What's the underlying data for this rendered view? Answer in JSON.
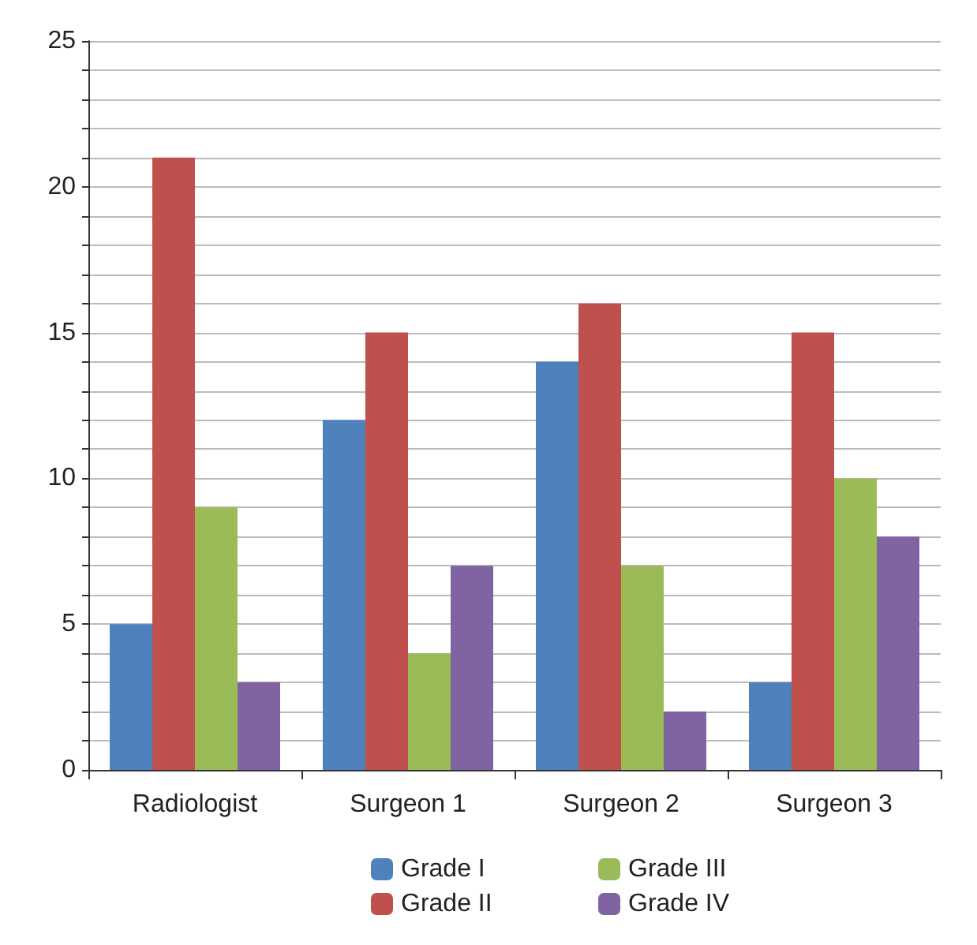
{
  "chart_data": {
    "type": "bar",
    "categories": [
      "Radiologist",
      "Surgeon 1",
      "Surgeon 2",
      "Surgeon 3"
    ],
    "series": [
      {
        "name": "Grade I",
        "color": "#4f81bd",
        "values": [
          5,
          12,
          14,
          3
        ]
      },
      {
        "name": "Grade II",
        "color": "#c0504d",
        "values": [
          21,
          15,
          16,
          15
        ]
      },
      {
        "name": "Grade III",
        "color": "#9bbb59",
        "values": [
          9,
          4,
          7,
          10
        ]
      },
      {
        "name": "Grade IV",
        "color": "#8064a2",
        "values": [
          3,
          7,
          2,
          8
        ]
      }
    ],
    "ylim": [
      0,
      25
    ],
    "yticks": [
      0,
      {
        "value": 1,
        "label": null
      },
      {
        "value": 2,
        "label": null
      },
      {
        "value": 3,
        "label": null
      },
      {
        "value": 4,
        "label": null
      },
      5,
      {
        "value": 6,
        "label": null
      },
      {
        "value": 7,
        "label": null
      },
      {
        "value": 8,
        "label": null
      },
      {
        "value": 9,
        "label": null
      },
      10,
      {
        "value": 11,
        "label": null
      },
      {
        "value": 12,
        "label": null
      },
      {
        "value": 13,
        "label": null
      },
      {
        "value": 14,
        "label": null
      },
      15,
      {
        "value": 16,
        "label": null
      },
      {
        "value": 17,
        "label": null
      },
      {
        "value": 18,
        "label": null
      },
      {
        "value": 19,
        "label": null
      },
      20,
      {
        "value": 21,
        "label": null
      },
      {
        "value": 22,
        "label": null
      },
      {
        "value": 23,
        "label": null
      },
      {
        "value": 24,
        "label": null
      },
      25
    ],
    "grid": "y",
    "legend": "bottom"
  }
}
